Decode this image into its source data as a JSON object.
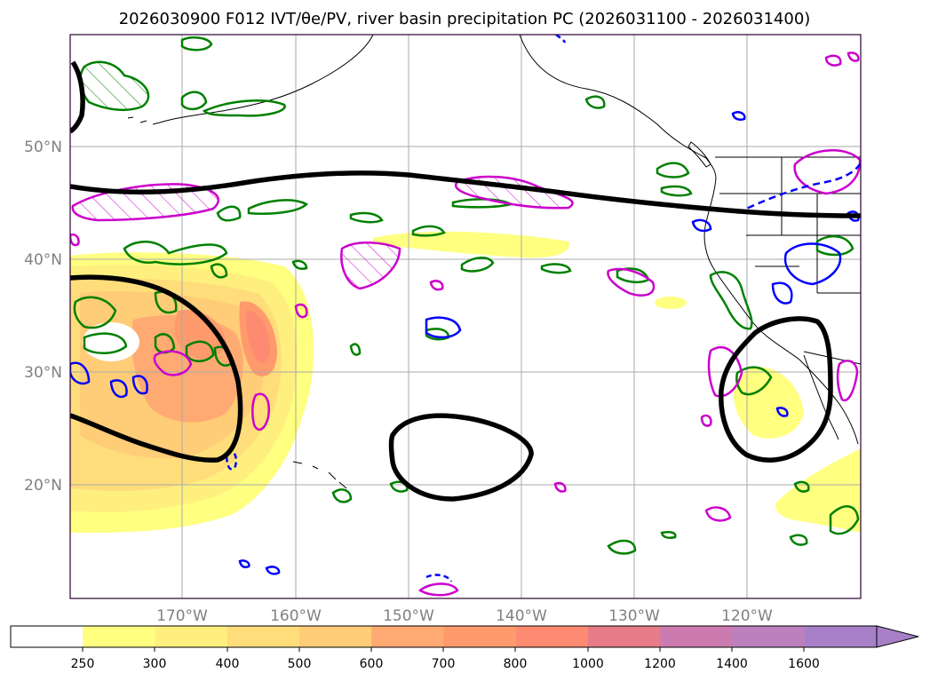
{
  "title": "2026030900 F012 IVT/θe/PV, river basin precipitation PC (2026031100 - 2026031400)",
  "lat_labels": [
    "50°N",
    "40°N",
    "30°N",
    "20°N"
  ],
  "lon_labels": [
    "170°W",
    "160°W",
    "150°W",
    "140°W",
    "130°W",
    "120°W"
  ],
  "colorbar": {
    "levels": [
      "250",
      "300",
      "400",
      "500",
      "600",
      "700",
      "800",
      "1000",
      "1200",
      "1400",
      "1600"
    ],
    "colors": [
      "#ffffff",
      "#ffff80",
      "#ffef7f",
      "#ffdd7b",
      "#ffcc77",
      "#ffaa73",
      "#ff9a6c",
      "#ff8a72",
      "#e77b88",
      "#cc7bb0",
      "#bb80bd",
      "#a780c8"
    ]
  },
  "contour_colors": {
    "theta_e_black": "#000000",
    "pv_green": "#008000",
    "pv_magenta": "#cc00cc",
    "pv_blue": "#0000ff"
  }
}
